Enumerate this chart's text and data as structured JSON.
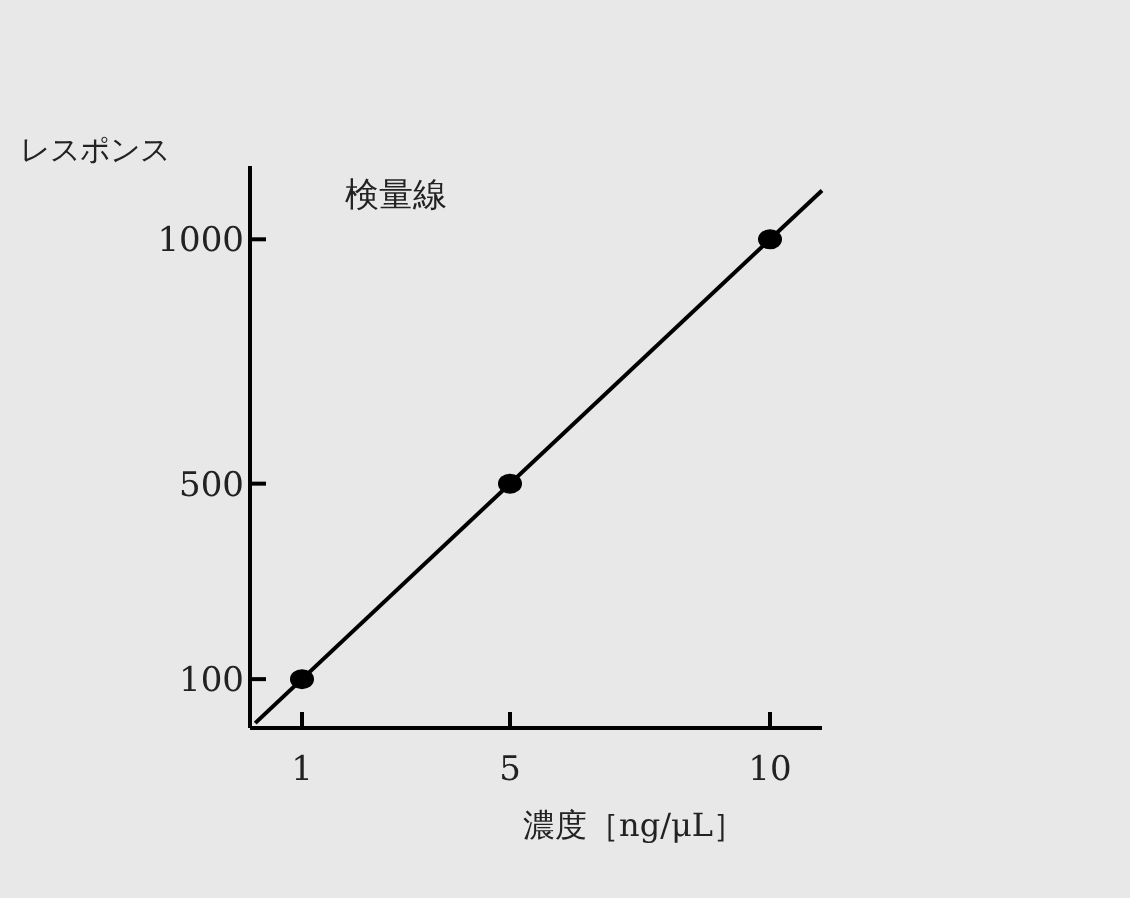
{
  "chart_data": {
    "type": "scatter",
    "title": "検量線",
    "xlabel": "濃度［ng/μL］",
    "ylabel": "レスポンス",
    "grid": false,
    "series": [
      {
        "color": "#000000",
        "marker": "circle",
        "x": [
          1,
          5,
          10
        ],
        "values": [
          100,
          500,
          1000
        ]
      },
      {
        "type": "line",
        "color": "#000000",
        "x": [
          0.1,
          11
        ],
        "values": [
          10,
          1100
        ]
      }
    ],
    "xlim": [
      0,
      11
    ],
    "ylim": [
      0,
      1150
    ],
    "xticks": [
      1,
      5,
      10
    ],
    "yticks": [
      100,
      500,
      1000
    ]
  }
}
